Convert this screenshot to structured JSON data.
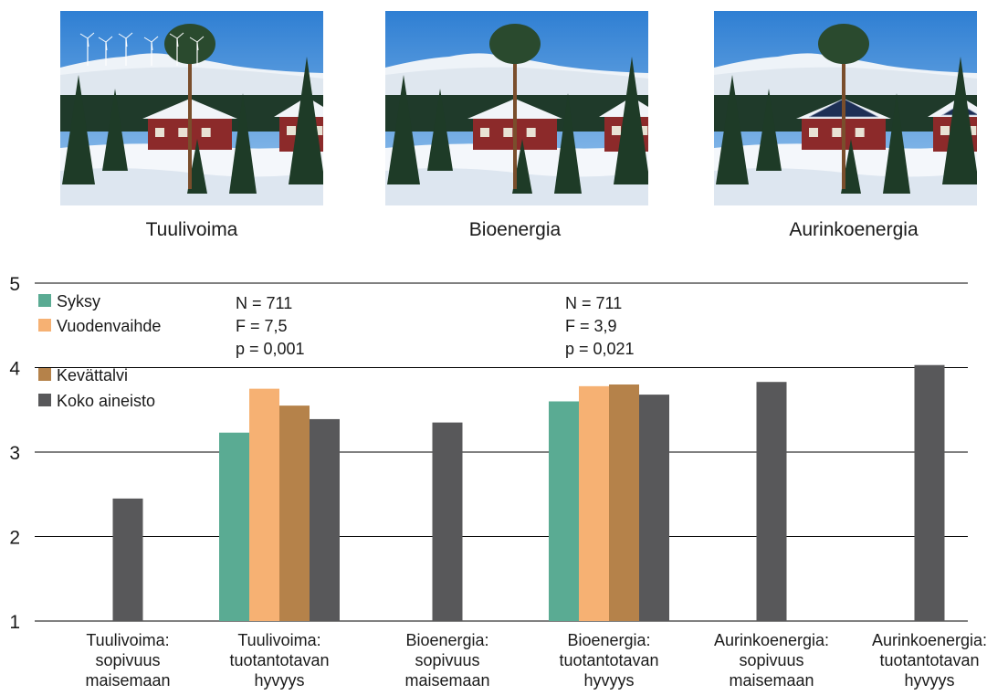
{
  "photos": [
    {
      "caption": "Tuulivoima",
      "feature": "wind-turbines"
    },
    {
      "caption": "Bioenergia",
      "feature": "none"
    },
    {
      "caption": "Aurinkoenergia",
      "feature": "solar-panels"
    }
  ],
  "chart_data": {
    "type": "bar",
    "title": "",
    "xlabel": "",
    "ylabel": "",
    "ylim": [
      1,
      5
    ],
    "yticks": [
      "1",
      "2",
      "3",
      "4",
      "5"
    ],
    "grid": true,
    "legend_position": "top-left",
    "categories": [
      [
        "Tuulivoima:",
        "sopivuus",
        "maisemaan"
      ],
      [
        "Tuulivoima:",
        "tuotantotavan",
        "hyvyys"
      ],
      [
        "Bioenergia:",
        "sopivuus",
        "maisemaan"
      ],
      [
        "Bioenergia:",
        "tuotantotavan",
        "hyvyys"
      ],
      [
        "Aurinkoenergia:",
        "sopivuus",
        "maisemaan"
      ],
      [
        "Aurinkoenergia:",
        "tuotantotavan",
        "hyvyys"
      ]
    ],
    "series": [
      {
        "name": "Syksy",
        "color": "#5aab93",
        "values": [
          null,
          3.23,
          null,
          3.6,
          null,
          null
        ]
      },
      {
        "name": "Vuodenvaihde",
        "color": "#f6b173",
        "values": [
          null,
          3.75,
          null,
          3.78,
          null,
          null
        ]
      },
      {
        "name": "Kevättalvi",
        "color": "#b5824a",
        "values": [
          null,
          3.55,
          null,
          3.8,
          null,
          null
        ]
      },
      {
        "name": "Koko aineisto",
        "color": "#58585a",
        "values": [
          2.45,
          3.39,
          3.35,
          3.68,
          3.83,
          4.03
        ]
      }
    ],
    "annotations": [
      {
        "category_index": 1,
        "lines": [
          "N = 711",
          "F = 7,5",
          "p = 0,001"
        ]
      },
      {
        "category_index": 3,
        "lines": [
          "N = 711",
          "F = 3,9",
          "p = 0,021"
        ]
      }
    ]
  }
}
